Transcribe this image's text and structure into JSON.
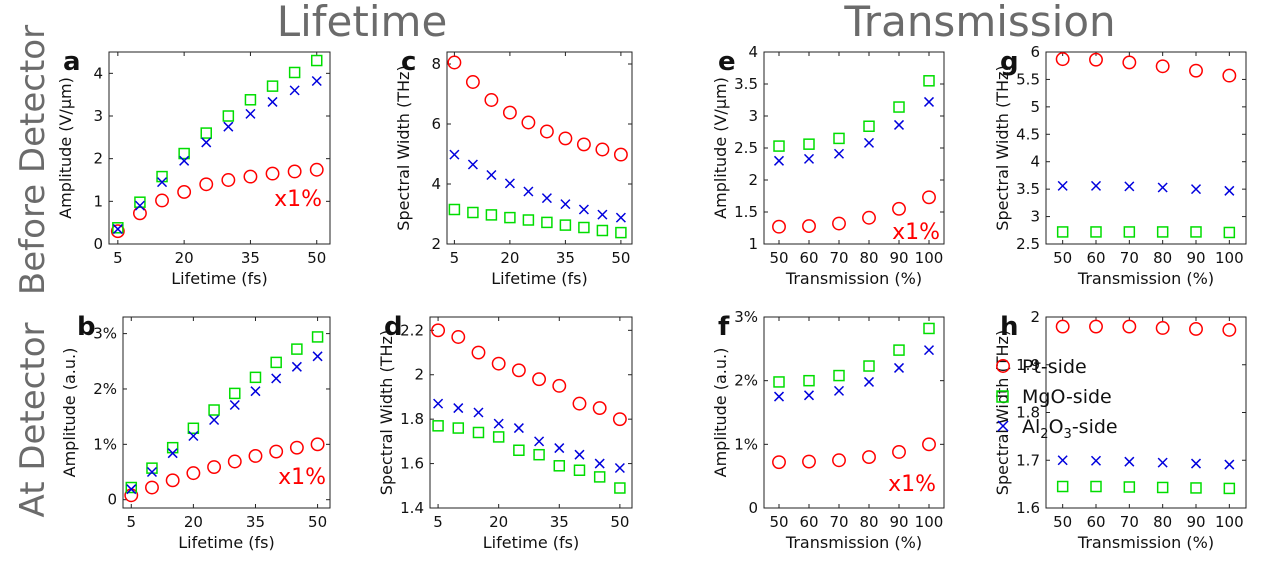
{
  "section_titles": {
    "lifetime": "Lifetime",
    "transmission": "Transmission"
  },
  "row_titles": {
    "before": "Before Detector",
    "at": "At Detector"
  },
  "legend": {
    "pt": "Pt-side",
    "mgo": "MgO-side",
    "al2o3_main": "Al",
    "al2o3_sub1": "2",
    "al2o3_mid": "O",
    "al2o3_sub2": "3",
    "al2o3_tail": "-side"
  },
  "colors": {
    "pt": "#ff0000",
    "mgo": "#00dd00",
    "al2o3": "#0000dd"
  },
  "chart_data": [
    {
      "type": "scatter",
      "panel": "a",
      "xlabel": "Lifetime (fs)",
      "ylabel": "Amplitude (V/μm)",
      "xlim": [
        3,
        53
      ],
      "ylim": [
        0,
        4.5
      ],
      "xticks": [
        5,
        20,
        35,
        50
      ],
      "xticklabels": [
        "5",
        "20",
        "35",
        "50"
      ],
      "yticks": [
        0,
        1,
        2,
        3,
        4
      ],
      "yticklabels": [
        "0",
        "1",
        "2",
        "3",
        "4"
      ],
      "annotation": "x1%",
      "x": [
        5,
        10,
        15,
        20,
        25,
        30,
        35,
        40,
        45,
        50
      ],
      "series": [
        {
          "name": "Pt-side",
          "values": [
            0.3,
            0.72,
            1.02,
            1.22,
            1.4,
            1.5,
            1.58,
            1.65,
            1.7,
            1.74
          ]
        },
        {
          "name": "MgO-side",
          "values": [
            0.38,
            0.98,
            1.58,
            2.12,
            2.6,
            3.0,
            3.38,
            3.7,
            4.02,
            4.3
          ]
        },
        {
          "name": "Al2O3-side",
          "values": [
            0.35,
            0.9,
            1.45,
            1.95,
            2.38,
            2.75,
            3.05,
            3.33,
            3.6,
            3.82
          ]
        }
      ]
    },
    {
      "type": "scatter",
      "panel": "c",
      "xlabel": "Lifetime (fs)",
      "ylabel": "Spectral Width (THz)",
      "xlim": [
        3,
        53
      ],
      "ylim": [
        2,
        8.4
      ],
      "xticks": [
        5,
        20,
        35,
        50
      ],
      "xticklabels": [
        "5",
        "20",
        "35",
        "50"
      ],
      "yticks": [
        2,
        4,
        6,
        8
      ],
      "yticklabels": [
        "2",
        "4",
        "6",
        "8"
      ],
      "x": [
        5,
        10,
        15,
        20,
        25,
        30,
        35,
        40,
        45,
        50
      ],
      "series": [
        {
          "name": "Pt-side",
          "values": [
            8.05,
            7.4,
            6.8,
            6.38,
            6.05,
            5.75,
            5.52,
            5.32,
            5.15,
            4.98
          ]
        },
        {
          "name": "MgO-side",
          "values": [
            3.15,
            3.05,
            2.97,
            2.88,
            2.8,
            2.72,
            2.63,
            2.55,
            2.45,
            2.38
          ]
        },
        {
          "name": "Al2O3-side",
          "values": [
            4.98,
            4.65,
            4.3,
            4.02,
            3.75,
            3.53,
            3.33,
            3.15,
            2.98,
            2.88
          ]
        }
      ]
    },
    {
      "type": "scatter",
      "panel": "e",
      "xlabel": "Transmission (%)",
      "ylabel": "Amplitude (V/μm)",
      "xlim": [
        45,
        105
      ],
      "ylim": [
        1,
        4
      ],
      "xticks": [
        50,
        60,
        70,
        80,
        90,
        100
      ],
      "xticklabels": [
        "50",
        "60",
        "70",
        "80",
        "90",
        "100"
      ],
      "yticks": [
        1,
        1.5,
        2,
        2.5,
        3,
        3.5,
        4
      ],
      "yticklabels": [
        "1",
        "1.5",
        "2",
        "2.5",
        "3",
        "3.5",
        "4"
      ],
      "annotation": "x1%",
      "x": [
        50,
        60,
        70,
        80,
        90,
        100
      ],
      "series": [
        {
          "name": "Pt-side",
          "values": [
            1.27,
            1.28,
            1.32,
            1.41,
            1.55,
            1.73
          ]
        },
        {
          "name": "MgO-side",
          "values": [
            2.53,
            2.56,
            2.65,
            2.84,
            3.14,
            3.55
          ]
        },
        {
          "name": "Al2O3-side",
          "values": [
            2.3,
            2.33,
            2.41,
            2.58,
            2.86,
            3.22
          ]
        }
      ]
    },
    {
      "type": "scatter",
      "panel": "g",
      "xlabel": "Transmission (%)",
      "ylabel": "Spectral Width (THz)",
      "xlim": [
        45,
        105
      ],
      "ylim": [
        2.5,
        6
      ],
      "xticks": [
        50,
        60,
        70,
        80,
        90,
        100
      ],
      "xticklabels": [
        "50",
        "60",
        "70",
        "80",
        "90",
        "100"
      ],
      "yticks": [
        2.5,
        3,
        3.5,
        4,
        4.5,
        5,
        5.5,
        6
      ],
      "yticklabels": [
        "2.5",
        "3",
        "3.5",
        "4",
        "4.5",
        "5",
        "5.5",
        "6"
      ],
      "x": [
        50,
        60,
        70,
        80,
        90,
        100
      ],
      "series": [
        {
          "name": "Pt-side",
          "values": [
            5.87,
            5.86,
            5.81,
            5.74,
            5.66,
            5.57
          ]
        },
        {
          "name": "MgO-side",
          "values": [
            2.72,
            2.72,
            2.72,
            2.72,
            2.72,
            2.71
          ]
        },
        {
          "name": "Al2O3-side",
          "values": [
            3.56,
            3.56,
            3.55,
            3.53,
            3.5,
            3.47
          ]
        }
      ]
    },
    {
      "type": "scatter",
      "panel": "b",
      "xlabel": "Lifetime (fs)",
      "ylabel": "Amplitude (a.u.)",
      "xlim": [
        3,
        53
      ],
      "ylim": [
        -0.0015,
        0.033
      ],
      "xticks": [
        5,
        20,
        35,
        50
      ],
      "xticklabels": [
        "5",
        "20",
        "35",
        "50"
      ],
      "yticks": [
        0,
        0.01,
        0.02,
        0.03
      ],
      "yticklabels": [
        "0",
        "1%",
        "2%",
        "3%"
      ],
      "annotation": "x1%",
      "x": [
        5,
        10,
        15,
        20,
        25,
        30,
        35,
        40,
        45,
        50
      ],
      "series": [
        {
          "name": "Pt-side",
          "values": [
            0.0008,
            0.0022,
            0.0035,
            0.0048,
            0.0059,
            0.0069,
            0.0079,
            0.0087,
            0.0094,
            0.01
          ]
        },
        {
          "name": "MgO-side",
          "values": [
            0.0022,
            0.0057,
            0.0094,
            0.0129,
            0.0162,
            0.0192,
            0.0221,
            0.0248,
            0.0272,
            0.0294
          ]
        },
        {
          "name": "Al2O3-side",
          "values": [
            0.0019,
            0.005,
            0.0084,
            0.0115,
            0.0144,
            0.0171,
            0.0196,
            0.0219,
            0.024,
            0.0259
          ]
        }
      ]
    },
    {
      "type": "scatter",
      "panel": "d",
      "xlabel": "Lifetime (fs)",
      "ylabel": "Spectral Width (THz)",
      "xlim": [
        3,
        53
      ],
      "ylim": [
        1.4,
        2.26
      ],
      "xticks": [
        5,
        20,
        35,
        50
      ],
      "xticklabels": [
        "5",
        "20",
        "35",
        "50"
      ],
      "yticks": [
        1.4,
        1.6,
        1.8,
        2.0,
        2.2
      ],
      "yticklabels": [
        "1.4",
        "1.6",
        "1.8",
        "2",
        "2.2"
      ],
      "x": [
        5,
        10,
        15,
        20,
        25,
        30,
        35,
        40,
        45,
        50
      ],
      "series": [
        {
          "name": "Pt-side",
          "values": [
            2.2,
            2.17,
            2.1,
            2.05,
            2.02,
            1.98,
            1.95,
            1.87,
            1.85,
            1.8
          ]
        },
        {
          "name": "MgO-side",
          "values": [
            1.77,
            1.76,
            1.74,
            1.72,
            1.66,
            1.64,
            1.59,
            1.57,
            1.54,
            1.49
          ]
        },
        {
          "name": "Al2O3-side",
          "values": [
            1.87,
            1.85,
            1.83,
            1.78,
            1.76,
            1.7,
            1.67,
            1.64,
            1.6,
            1.58
          ]
        }
      ]
    },
    {
      "type": "scatter",
      "panel": "f",
      "xlabel": "Transmission (%)",
      "ylabel": "Amplitude (a.u.)",
      "xlim": [
        45,
        105
      ],
      "ylim": [
        0,
        0.03
      ],
      "xticks": [
        50,
        60,
        70,
        80,
        90,
        100
      ],
      "xticklabels": [
        "50",
        "60",
        "70",
        "80",
        "90",
        "100"
      ],
      "yticks": [
        0,
        0.01,
        0.02,
        0.03
      ],
      "yticklabels": [
        "0",
        "1%",
        "2%",
        "3%"
      ],
      "annotation": "x1%",
      "x": [
        50,
        60,
        70,
        80,
        90,
        100
      ],
      "series": [
        {
          "name": "Pt-side",
          "values": [
            0.0072,
            0.0073,
            0.0075,
            0.008,
            0.0088,
            0.01
          ]
        },
        {
          "name": "MgO-side",
          "values": [
            0.0198,
            0.02,
            0.0208,
            0.0223,
            0.0248,
            0.0282
          ]
        },
        {
          "name": "Al2O3-side",
          "values": [
            0.0175,
            0.0177,
            0.0184,
            0.0198,
            0.022,
            0.0248
          ]
        }
      ]
    },
    {
      "type": "scatter",
      "panel": "h",
      "xlabel": "Transmission (%)",
      "ylabel": "Spectral Width (THz)",
      "xlim": [
        45,
        105
      ],
      "ylim": [
        1.6,
        2.0
      ],
      "xticks": [
        50,
        60,
        70,
        80,
        90,
        100
      ],
      "xticklabels": [
        "50",
        "60",
        "70",
        "80",
        "90",
        "100"
      ],
      "yticks": [
        1.6,
        1.7,
        1.8,
        1.9,
        2.0
      ],
      "yticklabels": [
        "1.6",
        "1.7",
        "1.8",
        "1.9",
        "2"
      ],
      "legend": "right-middle",
      "x": [
        50,
        60,
        70,
        80,
        90,
        100
      ],
      "series": [
        {
          "name": "Pt-side",
          "values": [
            1.98,
            1.98,
            1.98,
            1.977,
            1.975,
            1.973
          ]
        },
        {
          "name": "MgO-side",
          "values": [
            1.645,
            1.645,
            1.644,
            1.643,
            1.642,
            1.641
          ]
        },
        {
          "name": "Al2O3-side",
          "values": [
            1.7,
            1.699,
            1.697,
            1.695,
            1.693,
            1.691
          ]
        }
      ]
    }
  ]
}
